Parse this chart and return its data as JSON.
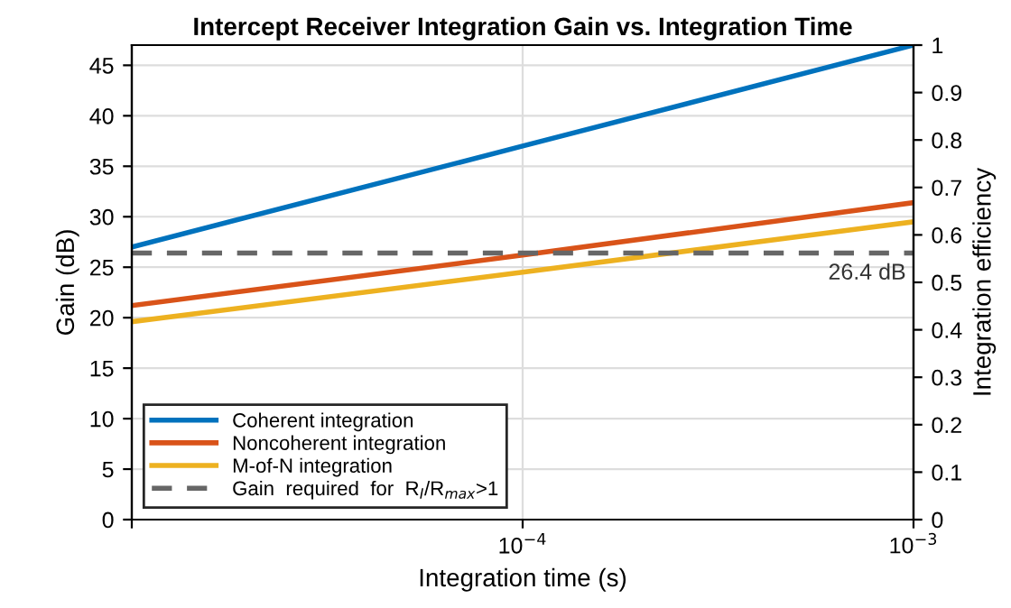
{
  "chart_data": {
    "type": "line",
    "title": "Intercept Receiver Integration Gain vs. Integration Time",
    "xlabel": "Integration time (s)",
    "ylabel": "Gain (dB)",
    "y2label": "Integration efficiency",
    "log": "x",
    "x": [
      1e-05,
      0.0001,
      0.001
    ],
    "series": [
      {
        "name": "Coherent integration",
        "color": "#0072bd",
        "values": [
          27,
          37,
          47
        ]
      },
      {
        "name": "Noncoherent integration",
        "color": "#d95319",
        "values": [
          21.2,
          26.2,
          31.4
        ]
      },
      {
        "name": "M-of-N integration",
        "color": "#edb120",
        "values": [
          19.6,
          24.5,
          29.5
        ]
      },
      {
        "name": "Gain  required  for  R$_{I}$/R$_{max}$>1",
        "color": "#666666",
        "values": [
          26.4,
          26.4,
          26.4
        ],
        "line_style": "dashed"
      }
    ],
    "annotations": [
      {
        "text": "26.4 dB",
        "x": 0.001,
        "y": 26.4
      }
    ],
    "xlim": [
      1e-05,
      0.001
    ],
    "xticks": [
      {
        "value": 1e-05,
        "label": null
      },
      {
        "value": 0.0001,
        "label": "10$^{−4}$"
      },
      {
        "value": 0.001,
        "label": "10$^{−3}$"
      }
    ],
    "ylim": [
      0,
      47
    ],
    "yticks": [
      0,
      5,
      10,
      15,
      20,
      25,
      30,
      35,
      40,
      45
    ],
    "y2lim": [
      0,
      1
    ],
    "y2ticks": [
      0,
      0.1,
      0.2,
      0.3,
      0.4,
      0.5,
      0.6,
      0.7,
      0.8,
      0.9,
      1
    ],
    "grid": true,
    "legend": "bottom left",
    "marker": "none",
    "line_style": "solid"
  }
}
